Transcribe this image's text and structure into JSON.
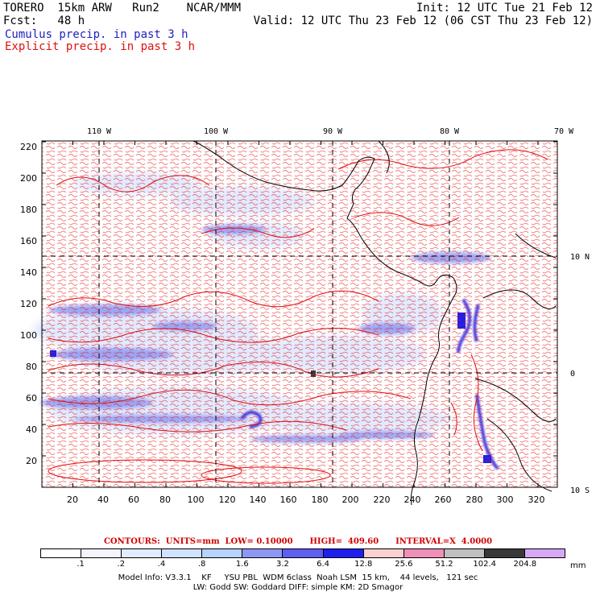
{
  "header": {
    "model_line": "TORERO  15km ARW   Run2    NCAR/MMM",
    "init": "Init: 12 UTC Tue 21 Feb 12",
    "fcst": "Fcst:   48 h",
    "valid": "Valid: 12 UTC Thu 23 Feb 12 (06 CST Thu 23 Feb 12)",
    "legend_cumulus": "Cumulus precip. in past 3 h",
    "legend_explicit": "Explicit precip. in past 3 h"
  },
  "map": {
    "lon_labels": [
      "110 W",
      "100 W",
      "90 W",
      "80 W",
      "70 W"
    ],
    "lat_labels": [
      "10 N",
      "0",
      "10 S"
    ],
    "y_ticks": [
      "220",
      "200",
      "180",
      "160",
      "140",
      "120",
      "100",
      "80",
      "60",
      "40",
      "20"
    ],
    "x_ticks": [
      "20",
      "40",
      "60",
      "80",
      "100",
      "120",
      "140",
      "160",
      "180",
      "200",
      "220",
      "240",
      "260",
      "280",
      "300",
      "320"
    ],
    "colors": {
      "contour": "#e01010",
      "coast": "#000000",
      "frame": "#000000"
    }
  },
  "contour_info": "CONTOURS:  UNITS=mm  LOW= 0.10000      HIGH=  409.60      INTERVAL=X  4.0000",
  "colorbar": {
    "colors": [
      "#ffffff",
      "#f4f4ff",
      "#e2ecff",
      "#d0e2ff",
      "#b8d2ff",
      "#8e98f4",
      "#5e5ef0",
      "#1e1eee",
      "#fcd0d0",
      "#f090b8",
      "#c0c0c0",
      "#383838",
      "#d8a8f8"
    ],
    "labels": [
      ".1",
      ".2",
      ".4",
      ".8",
      "1.6",
      "3.2",
      "6.4",
      "12.8",
      "25.6",
      "51.2",
      "102.4",
      "204.8"
    ],
    "unit": "mm"
  },
  "model_info": {
    "line1": "Model Info: V3.3.1    KF     YSU PBL  WDM 6class  Noah LSM  15 km,    44 levels,   121 sec",
    "line2": "LW: Godd SW: Goddard DIFF: simple KM: 2D Smagor"
  }
}
